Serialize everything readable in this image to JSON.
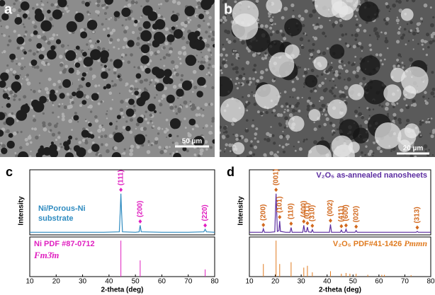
{
  "panels": [
    {
      "label": "a",
      "scale_bar": "50 µm"
    },
    {
      "label": "b",
      "scale_bar": "20 µm"
    }
  ],
  "chart_data": [
    {
      "type": "line",
      "label": "c",
      "ylabel": "Intensity",
      "xlim": [
        10,
        80
      ],
      "ylim": [
        0,
        150
      ],
      "series": [
        {
          "name": "Ni/Porous-Ni substrate",
          "color": "#2e8bc0",
          "x": [
            10,
            20,
            30,
            38,
            43.9,
            44.3,
            44.5,
            44.7,
            45.1,
            50,
            51.4,
            51.8,
            52.2,
            60,
            70,
            75.9,
            76.4,
            76.9,
            80
          ],
          "values": [
            6,
            6,
            6,
            6,
            7,
            60,
            95,
            60,
            7,
            6,
            7,
            22,
            7,
            6,
            6,
            7,
            13,
            7,
            6
          ]
        }
      ],
      "annotation_color": "#e020c0",
      "annotations": [
        {
          "x": 44.5,
          "y": 99,
          "text": "(111)"
        },
        {
          "x": 51.8,
          "y": 26,
          "text": "(200)"
        },
        {
          "x": 76.4,
          "y": 17,
          "text": "(220)"
        }
      ]
    },
    {
      "type": "stem",
      "xlim": [
        10,
        80
      ],
      "ylim": [
        0,
        110
      ],
      "xticks": [
        10,
        20,
        30,
        40,
        50,
        60,
        70,
        80
      ],
      "xlabel": "2-theta (deg)",
      "series": [
        {
          "name": "Ni PDF #87-0712",
          "space_group": "Fm3̄m",
          "color": "#e020c0",
          "x": [
            44.5,
            51.8,
            76.4
          ],
          "values": [
            100,
            45,
            20
          ]
        }
      ]
    },
    {
      "type": "line",
      "label": "d",
      "ylabel": "Intensity",
      "xlim": [
        10,
        80
      ],
      "ylim": [
        0,
        150
      ],
      "series": [
        {
          "name": "V₂O₅ as-annealed nanosheets",
          "color": "#5b2ca0",
          "x": [
            10,
            13,
            15,
            15.4,
            15.8,
            18,
            19.8,
            20.3,
            20.8,
            21.4,
            21.7,
            22.0,
            24,
            25.7,
            26.1,
            26.5,
            29,
            30.6,
            31.0,
            31.4,
            32.0,
            32.4,
            32.8,
            33.9,
            34.3,
            34.7,
            38,
            40.9,
            41.3,
            41.7,
            44,
            45.1,
            45.5,
            45.9,
            46.9,
            47.3,
            47.7,
            50.8,
            51.2,
            51.6,
            55,
            60,
            65,
            70,
            74.4,
            74.8,
            75.2,
            80
          ],
          "values": [
            6,
            6,
            6,
            14,
            6,
            6,
            7,
            95,
            8,
            10,
            32,
            8,
            6,
            6,
            17,
            6,
            6,
            6,
            22,
            7,
            7,
            18,
            7,
            6,
            12,
            6,
            6,
            6,
            24,
            6,
            6,
            6,
            11,
            6,
            6,
            13,
            6,
            6,
            10,
            6,
            6,
            6,
            6,
            6,
            6,
            8,
            6,
            6
          ]
        }
      ],
      "annotation_color": "#d2691e",
      "annotations": [
        {
          "x": 15.4,
          "y": 18,
          "text": "(200)"
        },
        {
          "x": 20.3,
          "y": 99,
          "text": "(001)"
        },
        {
          "x": 21.7,
          "y": 36,
          "text": "(101)"
        },
        {
          "x": 26.1,
          "y": 21,
          "text": "(110)"
        },
        {
          "x": 31.0,
          "y": 26,
          "text": "(400)"
        },
        {
          "x": 32.4,
          "y": 22,
          "text": "(011)"
        },
        {
          "x": 34.3,
          "y": 16,
          "text": "(310)"
        },
        {
          "x": 41.3,
          "y": 28,
          "text": "(002)"
        },
        {
          "x": 45.5,
          "y": 15,
          "text": "(411)"
        },
        {
          "x": 47.3,
          "y": 17,
          "text": "(600)"
        },
        {
          "x": 51.2,
          "y": 14,
          "text": "(020)"
        },
        {
          "x": 74.8,
          "y": 12,
          "text": "(313)"
        }
      ]
    },
    {
      "type": "stem",
      "xlim": [
        10,
        80
      ],
      "ylim": [
        0,
        110
      ],
      "xticks": [
        10,
        20,
        30,
        40,
        50,
        60,
        70,
        80
      ],
      "xlabel": "2-theta (deg)",
      "series": [
        {
          "name": "V₂O₅ PDF#41-1426",
          "space_group": "Pmmn",
          "color": "#e07b20",
          "x": [
            15.4,
            20.3,
            21.7,
            26.1,
            31.0,
            32.4,
            34.3,
            41.3,
            45.5,
            47.3,
            48.8,
            51.2,
            55.7,
            61.1,
            62.1,
            72.4
          ],
          "values": [
            35,
            100,
            35,
            40,
            25,
            30,
            12,
            15,
            8,
            10,
            8,
            8,
            5,
            5,
            5,
            4
          ]
        }
      ]
    }
  ]
}
